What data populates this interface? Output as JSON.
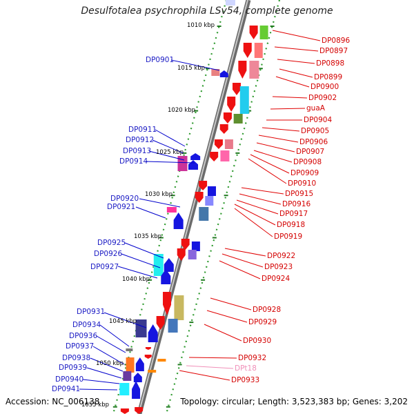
{
  "title": "Desulfotalea psychrophila LSv54, complete genome",
  "accession": "Accession: NC_006138",
  "summary": "Topology: circular; Length: 3,523,383 bp; Genes: 3,202",
  "ticks": [
    "1010 kbp",
    "1015 kbp",
    "1020 kbp",
    "1025 kbp",
    "1030 kbp",
    "1035 kbp",
    "1040 kbp",
    "1045 kbp",
    "1050 kbp",
    "1055 kbp"
  ],
  "left_labels": [
    "DP0901",
    "DP0911",
    "DP0912",
    "DP0913",
    "DP0914",
    "DP0920",
    "DP0921",
    "DP0925",
    "DP0926",
    "DP0927",
    "DP0931",
    "DP0934",
    "DP0936",
    "DP0937",
    "DP0938",
    "DP0939",
    "DP0940",
    "DP0941"
  ],
  "right_labels": [
    "DP0896",
    "DP0897",
    "DP0898",
    "DP0899",
    "DP0900",
    "DP0902",
    "guaA",
    "DP0904",
    "DP0905",
    "DP0906",
    "DP0907",
    "DP0908",
    "DP0909",
    "DP0910",
    "DP0915",
    "DP0916",
    "DP0917",
    "DP0918",
    "DP0919",
    "DP0922",
    "DP0923",
    "DP0924",
    "DP0928",
    "DP0929",
    "DP0930",
    "DP0932",
    "DP0933"
  ],
  "rna_labels": [
    "DPt18"
  ],
  "colors": {
    "forward": "#ee1111",
    "reverse": "#1515e0",
    "forward_label": "#d40000",
    "reverse_label": "#1a1ac4",
    "trna": "#f08fb8",
    "backbone": "#909090"
  }
}
